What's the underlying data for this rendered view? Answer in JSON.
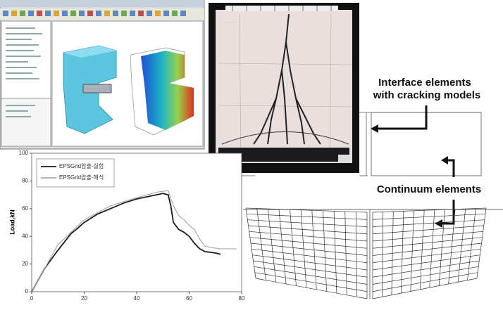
{
  "chart_data": {
    "type": "line",
    "ylabel": "Load,kN",
    "xlim": [
      0,
      80
    ],
    "ylim": [
      0,
      100
    ],
    "xticks": [
      0,
      20,
      40,
      60,
      80
    ],
    "yticks": [
      0,
      20,
      40,
      60,
      80,
      100
    ],
    "legend": "upper left",
    "series": [
      {
        "name": "EPSGrid압출-실험",
        "color": "#1a1a1a",
        "x": [
          0,
          5,
          10,
          15,
          17,
          20,
          25,
          30,
          35,
          40,
          45,
          50,
          52,
          53,
          54,
          56,
          58,
          60,
          62,
          64,
          66,
          70,
          72
        ],
        "values": [
          0,
          17,
          30,
          42,
          45,
          50,
          56,
          60,
          64,
          67,
          69,
          71,
          70,
          62,
          50,
          45,
          43,
          40,
          35,
          31,
          29,
          28,
          27
        ]
      },
      {
        "name": "EPSGrid압출-해석",
        "color": "#aaaaaa",
        "x": [
          0,
          10,
          20,
          30,
          40,
          48,
          52,
          54,
          56,
          58,
          60,
          62,
          64,
          66,
          68,
          72,
          78
        ],
        "values": [
          0,
          34,
          52,
          62,
          68,
          72,
          73,
          62,
          55,
          52,
          48,
          45,
          38,
          33,
          32,
          31,
          31
        ]
      }
    ]
  },
  "annotations": {
    "interface": [
      "Interface elements",
      "with cracking models"
    ],
    "continuum": "Continuum  elements"
  }
}
